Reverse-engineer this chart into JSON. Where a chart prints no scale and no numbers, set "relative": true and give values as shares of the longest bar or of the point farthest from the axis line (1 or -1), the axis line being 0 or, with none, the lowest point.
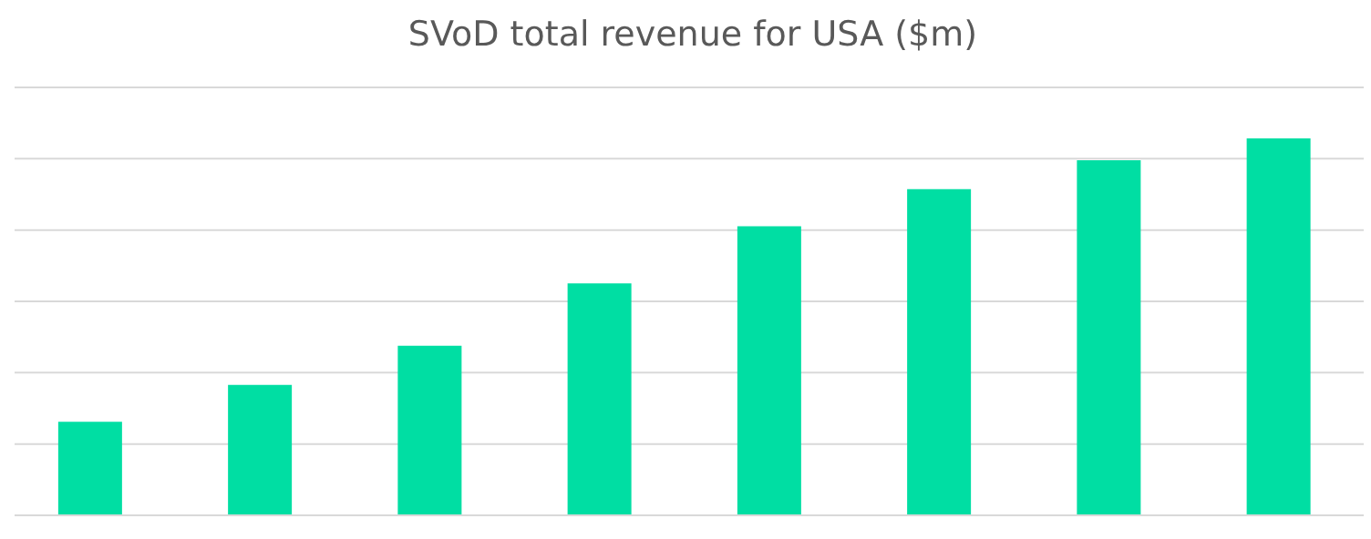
{
  "chart_data": {
    "type": "bar",
    "title": "SVoD total revenue for USA ($m)",
    "relative": true,
    "categories": [
      null,
      null,
      null,
      null,
      null,
      null,
      null,
      null
    ],
    "values": [
      0.248,
      0.346,
      0.45,
      0.615,
      0.767,
      0.865,
      0.942,
      1
    ],
    "color": "#00dea3",
    "grid": "y"
  }
}
